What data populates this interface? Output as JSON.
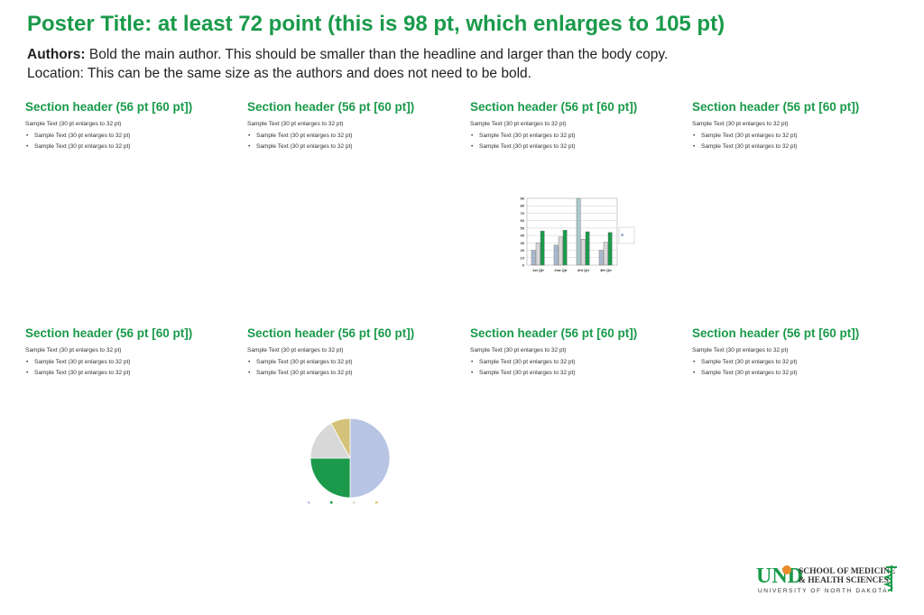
{
  "poster": {
    "title": "Poster Title: at least 72 point (this is 98 pt, which enlarges to 105 pt)",
    "authors_label": "Authors:",
    "authors_text": " Bold the main author. This should be smaller than the headline and larger than the body copy.",
    "location": "Location: This can be the same size as the authors and does not need to be bold."
  },
  "sections_top": [
    {
      "header": "Section header (56 pt [60 pt])",
      "lines": [
        "Sample Text (30 pt enlarges to 32 pt)",
        "Sample Text (30 pt enlarges to 32 pt)",
        "Sample Text (30 pt enlarges to 32 pt)"
      ]
    },
    {
      "header": "Section header (56 pt [60 pt])",
      "lines": [
        "Sample Text (30 pt enlarges to 32 pt)",
        "Sample Text (30 pt enlarges to 32 pt)",
        "Sample Text (30 pt enlarges to 32 pt)"
      ]
    },
    {
      "header": "Section header (56 pt [60 pt])",
      "lines": [
        "Sample Text (30 pt enlarges to 32 pt)",
        "Sample Text (30 pt enlarges to 32 pt)",
        "Sample Text (30 pt enlarges to 32 pt)"
      ]
    },
    {
      "header": "Section header (56 pt [60 pt])",
      "lines": [
        "Sample Text (30 pt enlarges to 32 pt)",
        "Sample Text (30 pt enlarges to 32 pt)",
        "Sample Text (30 pt enlarges to 32 pt)"
      ]
    }
  ],
  "sections_bottom": [
    {
      "header": "Section header (56 pt [60 pt])",
      "lines": [
        "Sample Text (30 pt enlarges to 32 pt)",
        "Sample Text (30 pt enlarges to 32 pt)",
        "Sample Text (30 pt enlarges to 32 pt)"
      ]
    },
    {
      "header": "Section header (56 pt [60 pt])",
      "lines": [
        "Sample Text (30 pt enlarges to 32 pt)",
        "Sample Text (30 pt enlarges to 32 pt)",
        "Sample Text (30 pt enlarges to 32 pt)"
      ]
    },
    {
      "header": "Section header (56 pt [60 pt])",
      "lines": [
        "Sample Text (30 pt enlarges to 32 pt)",
        "Sample Text (30 pt enlarges to 32 pt)",
        "Sample Text (30 pt enlarges to 32 pt)"
      ]
    },
    {
      "header": "Section header (56 pt [60 pt])",
      "lines": [
        "Sample Text (30 pt enlarges to 32 pt)",
        "Sample Text (30 pt enlarges to 32 pt)",
        "Sample Text (30 pt enlarges to 32 pt)"
      ]
    }
  ],
  "colors": {
    "accent": "#1a9a4a",
    "bar_series": [
      "#a8b8d0",
      "#d8d8d8",
      "#1a9a4a",
      "#a8c8cc"
    ],
    "pie_slices": [
      "#b8c4e4",
      "#1a9a4a",
      "#d8d8d8",
      "#d4c27a"
    ]
  },
  "logo": {
    "mark": "UND",
    "line1": "SCHOOL OF MEDICINE",
    "line2": "& HEALTH SCIENCES",
    "line3": "UNIVERSITY OF NORTH DAKOTA",
    "icon": "caduceus-icon"
  },
  "chart_data": [
    {
      "type": "bar",
      "categories": [
        "1st Qtr",
        "2nd Qtr",
        "3rd Qtr",
        "4th Qtr"
      ],
      "series": [
        {
          "name": "",
          "values": [
            20,
            27,
            90,
            20
          ]
        },
        {
          "name": "",
          "values": [
            30,
            38,
            35,
            31
          ]
        },
        {
          "name": "",
          "values": [
            46,
            47,
            45,
            44
          ]
        }
      ],
      "yticks": [
        0,
        10,
        20,
        30,
        40,
        50,
        60,
        70,
        80,
        90
      ],
      "ylim": [
        0,
        90
      ],
      "legend_text": "",
      "legend_position": "right",
      "grid": true
    },
    {
      "type": "pie",
      "title": "",
      "labels": [
        "",
        "",
        "",
        ""
      ],
      "values": [
        50,
        25,
        17,
        8
      ],
      "legend_position": "bottom"
    }
  ]
}
